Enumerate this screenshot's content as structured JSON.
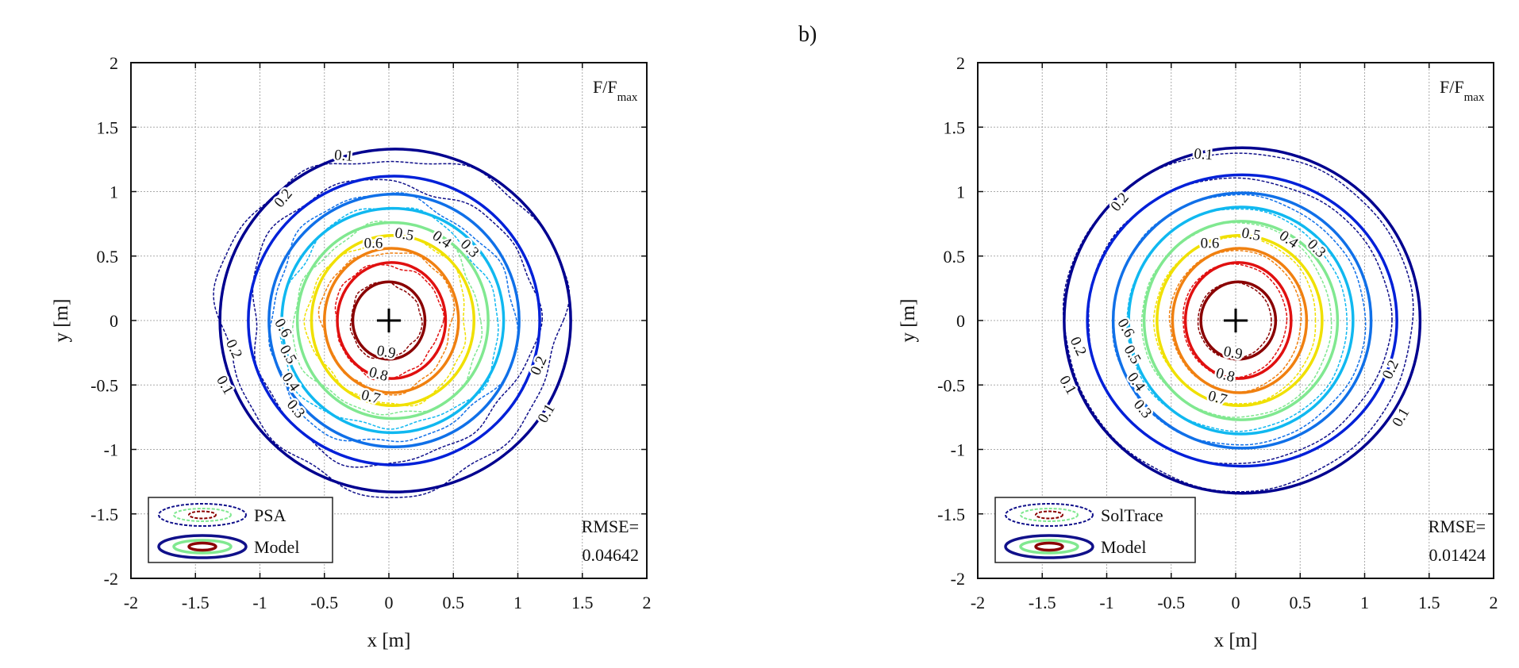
{
  "figure_label": "b)",
  "chart_data": [
    {
      "type": "contour",
      "panel": "left",
      "xlabel": "x [m]",
      "ylabel": "y [m]",
      "xlim": [
        -2,
        2
      ],
      "ylim": [
        -2,
        2
      ],
      "grid": true,
      "xticks": [
        "-2",
        "-1.5",
        "-1",
        "-0.5",
        "0",
        "0.5",
        "1",
        "1.5",
        "2"
      ],
      "yticks": [
        "2",
        "1.5",
        "1",
        "0.5",
        "0",
        "-0.5",
        "-1",
        "-1.5",
        "-2"
      ],
      "quantity_label": "F/F",
      "quantity_sub": "max",
      "legend_position": "bottom-left",
      "legend": [
        {
          "label": "PSA",
          "style": "dashed"
        },
        {
          "label": "Model",
          "style": "solid"
        }
      ],
      "rmse_label": "RMSE=",
      "rmse_value": "0.04642",
      "center_marker": [
        0,
        0
      ],
      "reference_irregularity": 0.07,
      "levels": [
        {
          "level": 0.1,
          "color": "#00008f",
          "cx": 0.05,
          "cy": 0.0,
          "rx": 1.36,
          "ry": 1.33
        },
        {
          "level": 0.2,
          "color": "#0020d8",
          "cx": 0.04,
          "cy": 0.0,
          "rx": 1.13,
          "ry": 1.12
        },
        {
          "level": 0.3,
          "color": "#1070e8",
          "cx": 0.04,
          "cy": 0.0,
          "rx": 0.97,
          "ry": 0.98
        },
        {
          "level": 0.4,
          "color": "#10b8f0",
          "cx": 0.03,
          "cy": 0.0,
          "rx": 0.86,
          "ry": 0.87
        },
        {
          "level": 0.5,
          "color": "#80e890",
          "cx": 0.03,
          "cy": 0.0,
          "rx": 0.74,
          "ry": 0.76
        },
        {
          "level": 0.6,
          "color": "#f0e000",
          "cx": 0.03,
          "cy": 0.0,
          "rx": 0.63,
          "ry": 0.66
        },
        {
          "level": 0.7,
          "color": "#f08010",
          "cx": 0.02,
          "cy": 0.0,
          "rx": 0.52,
          "ry": 0.56
        },
        {
          "level": 0.8,
          "color": "#e01010",
          "cx": 0.02,
          "cy": 0.0,
          "rx": 0.42,
          "ry": 0.45
        },
        {
          "level": 0.9,
          "color": "#8a0000",
          "cx": 0.0,
          "cy": 0.0,
          "rx": 0.28,
          "ry": 0.3
        }
      ],
      "contour_labels": [
        {
          "text": "0.1",
          "x": -0.35,
          "y": 1.28,
          "angle": 5
        },
        {
          "text": "0.2",
          "x": -0.82,
          "y": 0.95,
          "angle": -50
        },
        {
          "text": "0.6",
          "x": -0.12,
          "y": 0.6,
          "angle": 0
        },
        {
          "text": "0.5",
          "x": 0.12,
          "y": 0.67,
          "angle": 10
        },
        {
          "text": "0.4",
          "x": 0.42,
          "y": 0.63,
          "angle": 35
        },
        {
          "text": "0.3",
          "x": 0.62,
          "y": 0.56,
          "angle": 45
        },
        {
          "text": "0.2",
          "x": -1.2,
          "y": -0.22,
          "angle": 65
        },
        {
          "text": "0.1",
          "x": -1.27,
          "y": -0.5,
          "angle": 60
        },
        {
          "text": "0.6",
          "x": -0.82,
          "y": -0.2,
          "angle": 60
        },
        {
          "text": "0.5",
          "x": -0.78,
          "y": -0.3,
          "angle": 60
        },
        {
          "text": "0.4",
          "x": -0.76,
          "y": -0.4,
          "angle": 55
        },
        {
          "text": "0.3",
          "x": -0.72,
          "y": -0.58,
          "angle": 50
        },
        {
          "text": "0.9",
          "x": -0.02,
          "y": -0.31,
          "angle": 10
        },
        {
          "text": "0.8",
          "x": -0.08,
          "y": -0.42,
          "angle": 15
        },
        {
          "text": "0.7",
          "x": -0.14,
          "y": -0.52,
          "angle": 15
        },
        {
          "text": "0.2",
          "x": 1.16,
          "y": -0.35,
          "angle": -65
        },
        {
          "text": "0.1",
          "x": 1.22,
          "y": -0.72,
          "angle": -60
        }
      ]
    },
    {
      "type": "contour",
      "panel": "right",
      "xlabel": "x [m]",
      "ylabel": "y [m]",
      "xlim": [
        -2,
        2
      ],
      "ylim": [
        -2,
        2
      ],
      "grid": true,
      "xticks": [
        "-2",
        "-1.5",
        "-1",
        "-0.5",
        "0",
        "0.5",
        "1",
        "1.5",
        "2"
      ],
      "yticks": [
        "2",
        "1.5",
        "1",
        "0.5",
        "0",
        "-0.5",
        "-1",
        "-1.5",
        "-2"
      ],
      "quantity_label": "F/F",
      "quantity_sub": "max",
      "legend_position": "bottom-left",
      "legend": [
        {
          "label": "SolTrace",
          "style": "dashed"
        },
        {
          "label": "Model",
          "style": "solid"
        }
      ],
      "rmse_label": "RMSE=",
      "rmse_value": "0.01424",
      "center_marker": [
        0,
        0
      ],
      "reference_irregularity": 0.015,
      "levels": [
        {
          "level": 0.1,
          "color": "#00008f",
          "cx": 0.05,
          "cy": 0.0,
          "rx": 1.38,
          "ry": 1.34
        },
        {
          "level": 0.2,
          "color": "#0020d8",
          "cx": 0.05,
          "cy": 0.0,
          "rx": 1.2,
          "ry": 1.13
        },
        {
          "level": 0.3,
          "color": "#1070e8",
          "cx": 0.05,
          "cy": 0.0,
          "rx": 1.0,
          "ry": 0.99
        },
        {
          "level": 0.4,
          "color": "#10b8f0",
          "cx": 0.04,
          "cy": 0.0,
          "rx": 0.87,
          "ry": 0.88
        },
        {
          "level": 0.5,
          "color": "#80e890",
          "cx": 0.04,
          "cy": 0.0,
          "rx": 0.75,
          "ry": 0.77
        },
        {
          "level": 0.6,
          "color": "#f0e000",
          "cx": 0.03,
          "cy": 0.0,
          "rx": 0.64,
          "ry": 0.66
        },
        {
          "level": 0.7,
          "color": "#f08010",
          "cx": 0.03,
          "cy": 0.0,
          "rx": 0.52,
          "ry": 0.56
        },
        {
          "level": 0.8,
          "color": "#e01010",
          "cx": 0.02,
          "cy": 0.0,
          "rx": 0.41,
          "ry": 0.45
        },
        {
          "level": 0.9,
          "color": "#8a0000",
          "cx": 0.02,
          "cy": 0.0,
          "rx": 0.29,
          "ry": 0.3
        }
      ],
      "contour_labels": [
        {
          "text": "0.1",
          "x": -0.25,
          "y": 1.29,
          "angle": 5
        },
        {
          "text": "0.2",
          "x": -0.9,
          "y": 0.92,
          "angle": -50
        },
        {
          "text": "0.6",
          "x": -0.2,
          "y": 0.6,
          "angle": 0
        },
        {
          "text": "0.5",
          "x": 0.12,
          "y": 0.67,
          "angle": 10
        },
        {
          "text": "0.4",
          "x": 0.42,
          "y": 0.63,
          "angle": 35
        },
        {
          "text": "0.3",
          "x": 0.62,
          "y": 0.56,
          "angle": 45
        },
        {
          "text": "0.2",
          "x": -1.22,
          "y": -0.2,
          "angle": 65
        },
        {
          "text": "0.1",
          "x": -1.3,
          "y": -0.5,
          "angle": 60
        },
        {
          "text": "0.6",
          "x": -0.85,
          "y": -0.2,
          "angle": 60
        },
        {
          "text": "0.5",
          "x": -0.8,
          "y": -0.3,
          "angle": 60
        },
        {
          "text": "0.4",
          "x": -0.77,
          "y": -0.4,
          "angle": 55
        },
        {
          "text": "0.3",
          "x": -0.72,
          "y": -0.58,
          "angle": 50
        },
        {
          "text": "0.9",
          "x": -0.02,
          "y": -0.31,
          "angle": 10
        },
        {
          "text": "0.8",
          "x": -0.08,
          "y": -0.43,
          "angle": 15
        },
        {
          "text": "0.7",
          "x": -0.14,
          "y": -0.53,
          "angle": 15
        },
        {
          "text": "0.2",
          "x": 1.2,
          "y": -0.38,
          "angle": -65
        },
        {
          "text": "0.1",
          "x": 1.28,
          "y": -0.75,
          "angle": -60
        }
      ]
    }
  ]
}
